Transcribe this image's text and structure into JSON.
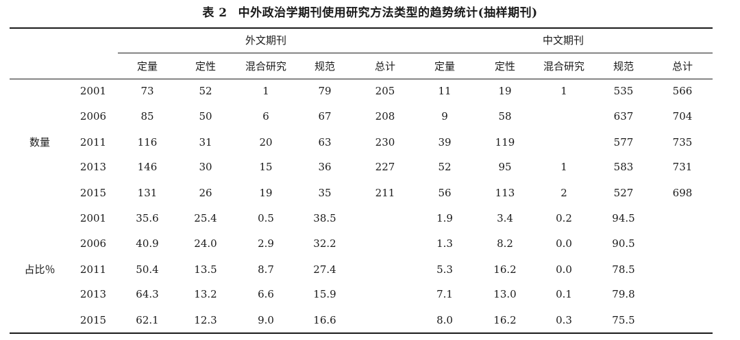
{
  "caption": {
    "number": "表 2",
    "title": "中外政治学期刊使用研究方法类型的趋势统计(抽样期刊)"
  },
  "groups": [
    "外文期刊",
    "中文期刊"
  ],
  "subheaders": [
    "定量",
    "定性",
    "混合研究",
    "规范",
    "总计",
    "定量",
    "定性",
    "混合研究",
    "规范",
    "总计"
  ],
  "sections": [
    {
      "label": "数量",
      "rows": [
        {
          "year": "2001",
          "values": [
            "73",
            "52",
            "1",
            "79",
            "205",
            "11",
            "19",
            "1",
            "535",
            "566"
          ]
        },
        {
          "year": "2006",
          "values": [
            "85",
            "50",
            "6",
            "67",
            "208",
            "9",
            "58",
            "",
            "637",
            "704"
          ]
        },
        {
          "year": "2011",
          "values": [
            "116",
            "31",
            "20",
            "63",
            "230",
            "39",
            "119",
            "",
            "577",
            "735"
          ]
        },
        {
          "year": "2013",
          "values": [
            "146",
            "30",
            "15",
            "36",
            "227",
            "52",
            "95",
            "1",
            "583",
            "731"
          ]
        },
        {
          "year": "2015",
          "values": [
            "131",
            "26",
            "19",
            "35",
            "211",
            "56",
            "113",
            "2",
            "527",
            "698"
          ]
        }
      ]
    },
    {
      "label": "占比％",
      "rows": [
        {
          "year": "2001",
          "values": [
            "35.6",
            "25.4",
            "0.5",
            "38.5",
            "",
            "1.9",
            "3.4",
            "0.2",
            "94.5",
            ""
          ]
        },
        {
          "year": "2006",
          "values": [
            "40.9",
            "24.0",
            "2.9",
            "32.2",
            "",
            "1.3",
            "8.2",
            "0.0",
            "90.5",
            ""
          ]
        },
        {
          "year": "2011",
          "values": [
            "50.4",
            "13.5",
            "8.7",
            "27.4",
            "",
            "5.3",
            "16.2",
            "0.0",
            "78.5",
            ""
          ]
        },
        {
          "year": "2013",
          "values": [
            "64.3",
            "13.2",
            "6.6",
            "15.9",
            "",
            "7.1",
            "13.0",
            "0.1",
            "79.8",
            ""
          ]
        },
        {
          "year": "2015",
          "values": [
            "62.1",
            "12.3",
            "9.0",
            "16.6",
            "",
            "8.0",
            "16.2",
            "0.3",
            "75.5",
            ""
          ]
        }
      ]
    }
  ]
}
